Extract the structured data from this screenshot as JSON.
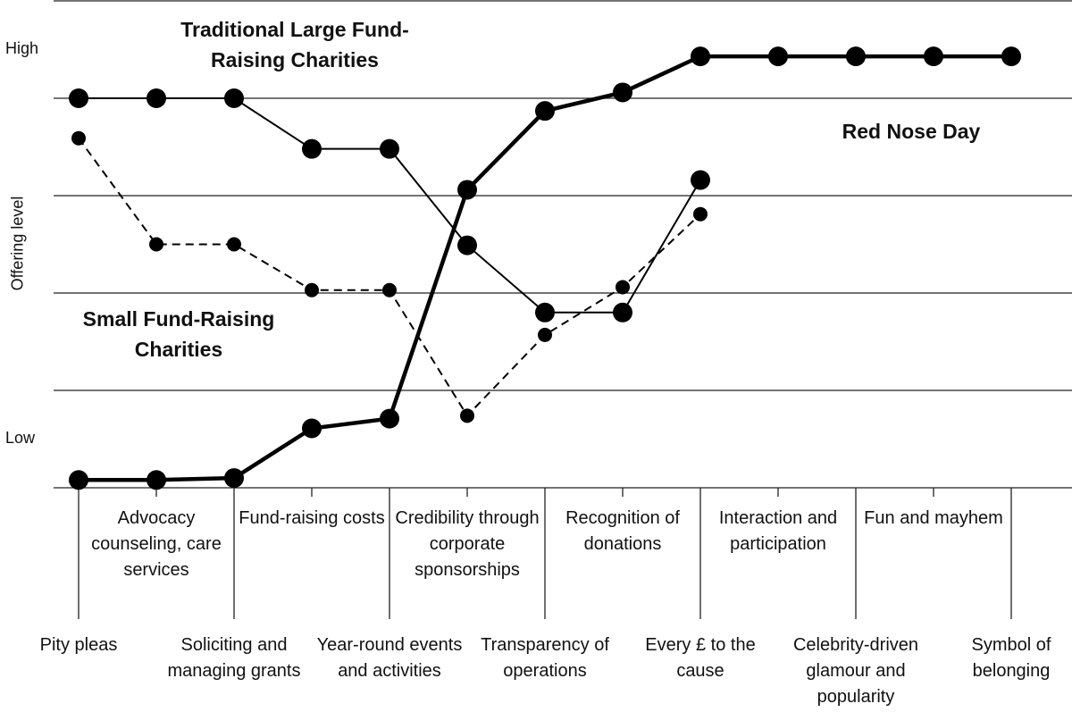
{
  "chart_data": {
    "type": "line",
    "y_label": "Offering level",
    "categories": [
      "Pity pleas",
      "Advocacy counseling, care services",
      "Soliciting and managing grants",
      "Fund-raising costs",
      "Year-round events and activities",
      "Credibility through corporate sponsorships",
      "Transparency of operations",
      "Recognition of donations",
      "Every £ to the cause",
      "Interaction and participation",
      "Celebrity-driven glamour and popularity",
      "Fun and mayhem",
      "Symbol of belonging"
    ],
    "ylim": [
      0,
      5
    ],
    "yticks": [
      {
        "value": 0.5,
        "label": "Low"
      },
      {
        "value": 4.5,
        "label": "High"
      }
    ],
    "grid_lines": [
      0,
      1,
      2,
      3,
      4,
      5
    ],
    "series": [
      {
        "name": "Traditional Large Fund-Raising Charities",
        "color": "#000000",
        "style": "solid",
        "values": [
          4.0,
          4.0,
          4.0,
          3.48,
          3.48,
          2.49,
          1.8,
          1.8,
          3.16,
          null,
          null,
          null,
          null
        ]
      },
      {
        "name": "Small Fund-Raising Charities",
        "color": "#000000",
        "style": "dashed",
        "values": [
          3.59,
          2.5,
          2.5,
          2.03,
          2.03,
          0.74,
          1.57,
          2.06,
          2.81,
          null,
          null,
          null,
          null
        ]
      },
      {
        "name": "Red Nose Day",
        "color": "#000000",
        "style": "bold",
        "values": [
          0.08,
          0.08,
          0.1,
          0.61,
          0.71,
          3.06,
          3.87,
          4.06,
          4.43,
          4.43,
          4.43,
          4.43,
          4.43
        ]
      }
    ]
  }
}
